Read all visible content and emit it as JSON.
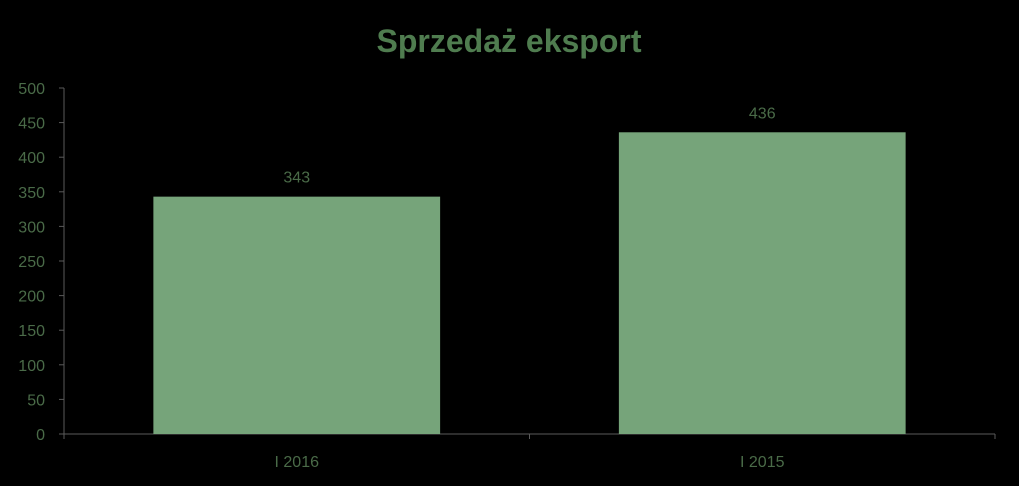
{
  "chart_data": {
    "type": "bar",
    "title": "Sprzedaż eksport",
    "categories": [
      "I 2016",
      "I 2015"
    ],
    "values": [
      343,
      436
    ],
    "data_labels": [
      "343",
      "436"
    ],
    "ylim": [
      0,
      500
    ],
    "yticks": [
      0,
      50,
      100,
      150,
      200,
      250,
      300,
      350,
      400,
      450,
      500
    ],
    "ytick_labels": [
      "0",
      "50",
      "100",
      "150",
      "200",
      "250",
      "300",
      "350",
      "400",
      "450",
      "500"
    ],
    "grid": false,
    "legend": "none"
  },
  "colors": {
    "background": "#000000",
    "bar": "#76a47a",
    "title": "#4f7c4f",
    "text": "#4a6b48",
    "axis": "#5a5a5a"
  }
}
